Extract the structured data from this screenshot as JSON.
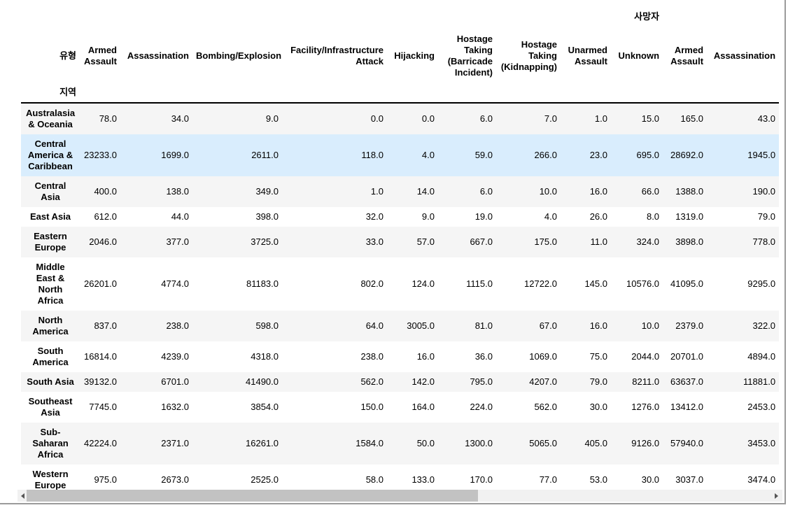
{
  "table": {
    "column_axis_name": "유형",
    "row_axis_name": "지역",
    "groups": [
      {
        "label": "",
        "span": 1
      },
      {
        "label": "사망자",
        "span": 9
      },
      {
        "label": "",
        "span": 2
      }
    ],
    "columns": [
      "Armed Assault",
      "Assassination",
      "Bombing/Explosion",
      "Facility/Infrastructure Attack",
      "Hijacking",
      "Hostage Taking (Barricade Incident)",
      "Hostage Taking (Kidnapping)",
      "Unarmed Assault",
      "Unknown",
      "Armed Assault",
      "Assassination"
    ],
    "rows": [
      {
        "label": "Australasia & Oceania",
        "highlighted": false,
        "values": [
          "78.0",
          "34.0",
          "9.0",
          "0.0",
          "0.0",
          "6.0",
          "7.0",
          "1.0",
          "15.0",
          "165.0",
          "43.0"
        ]
      },
      {
        "label": "Central America & Caribbean",
        "highlighted": true,
        "values": [
          "23233.0",
          "1699.0",
          "2611.0",
          "118.0",
          "4.0",
          "59.0",
          "266.0",
          "23.0",
          "695.0",
          "28692.0",
          "1945.0"
        ]
      },
      {
        "label": "Central Asia",
        "highlighted": false,
        "values": [
          "400.0",
          "138.0",
          "349.0",
          "1.0",
          "14.0",
          "6.0",
          "10.0",
          "16.0",
          "66.0",
          "1388.0",
          "190.0"
        ]
      },
      {
        "label": "East Asia",
        "highlighted": false,
        "values": [
          "612.0",
          "44.0",
          "398.0",
          "32.0",
          "9.0",
          "19.0",
          "4.0",
          "26.0",
          "8.0",
          "1319.0",
          "79.0"
        ]
      },
      {
        "label": "Eastern Europe",
        "highlighted": false,
        "values": [
          "2046.0",
          "377.0",
          "3725.0",
          "33.0",
          "57.0",
          "667.0",
          "175.0",
          "11.0",
          "324.0",
          "3898.0",
          "778.0"
        ]
      },
      {
        "label": "Middle East & North Africa",
        "highlighted": false,
        "values": [
          "26201.0",
          "4774.0",
          "81183.0",
          "802.0",
          "124.0",
          "1115.0",
          "12722.0",
          "145.0",
          "10576.0",
          "41095.0",
          "9295.0"
        ]
      },
      {
        "label": "North America",
        "highlighted": false,
        "values": [
          "837.0",
          "238.0",
          "598.0",
          "64.0",
          "3005.0",
          "81.0",
          "67.0",
          "16.0",
          "10.0",
          "2379.0",
          "322.0"
        ]
      },
      {
        "label": "South America",
        "highlighted": false,
        "values": [
          "16814.0",
          "4239.0",
          "4318.0",
          "238.0",
          "16.0",
          "36.0",
          "1069.0",
          "75.0",
          "2044.0",
          "20701.0",
          "4894.0"
        ]
      },
      {
        "label": "South Asia",
        "highlighted": false,
        "values": [
          "39132.0",
          "6701.0",
          "41490.0",
          "562.0",
          "142.0",
          "795.0",
          "4207.0",
          "79.0",
          "8211.0",
          "63637.0",
          "11881.0"
        ]
      },
      {
        "label": "Southeast Asia",
        "highlighted": false,
        "values": [
          "7745.0",
          "1632.0",
          "3854.0",
          "150.0",
          "164.0",
          "224.0",
          "562.0",
          "30.0",
          "1276.0",
          "13412.0",
          "2453.0"
        ]
      },
      {
        "label": "Sub-Saharan Africa",
        "highlighted": false,
        "values": [
          "42224.0",
          "2371.0",
          "16261.0",
          "1584.0",
          "50.0",
          "1300.0",
          "5065.0",
          "405.0",
          "9126.0",
          "57940.0",
          "3453.0"
        ]
      },
      {
        "label": "Western Europe",
        "highlighted": false,
        "values": [
          "975.0",
          "2673.0",
          "2525.0",
          "58.0",
          "133.0",
          "170.0",
          "77.0",
          "53.0",
          "30.0",
          "3037.0",
          "3474.0"
        ]
      }
    ]
  },
  "scrollbar": {
    "orientation": "horizontal",
    "icons": {
      "left": "scroll-left-arrow-icon",
      "right": "scroll-right-arrow-icon"
    }
  },
  "colors": {
    "highlight_row": "#d9edfd",
    "stripe_row": "#f5f5f5",
    "header_rule": "#000000",
    "frame_border": "#9b9b9b",
    "scrollbar_track": "#f1f1f1",
    "scrollbar_thumb": "#c2c2c2"
  }
}
